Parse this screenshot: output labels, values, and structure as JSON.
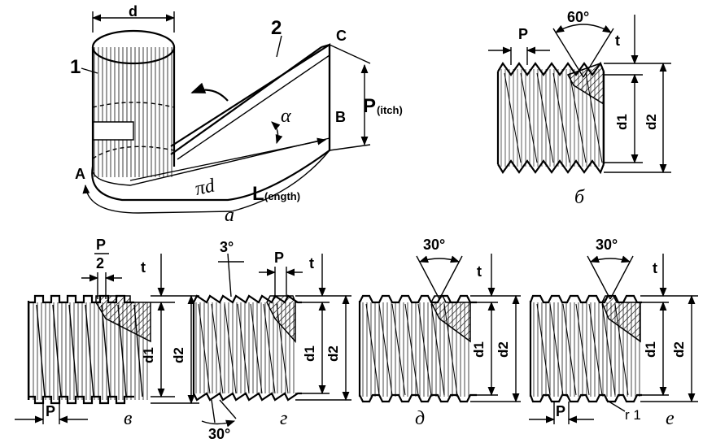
{
  "fig_a": {
    "label_d": "d",
    "label_1": "1",
    "label_2": "2",
    "label_A": "A",
    "label_B": "B",
    "label_C": "C",
    "label_alpha": "α",
    "label_pid": "πd",
    "pitch_main": "P",
    "pitch_sub": "(itch)",
    "length_main": "L",
    "length_sub": "(ength)",
    "caption": "а"
  },
  "fig_b": {
    "label_P": "P",
    "angle": "60°",
    "label_t": "t",
    "label_d1": "d1",
    "label_d2": "d2",
    "caption": "б"
  },
  "fig_v": {
    "label_P": "P",
    "label_2": "2",
    "label_t": "t",
    "label_d1": "d1",
    "label_d2": "d2",
    "label_P_bottom": "P",
    "caption": "в"
  },
  "fig_g": {
    "angle_top": "3°",
    "label_P": "P",
    "label_t": "t",
    "label_d1": "d1",
    "label_d2": "d2",
    "angle_bottom": "30°",
    "caption": "г"
  },
  "fig_d": {
    "angle": "30°",
    "label_t": "t",
    "label_d1": "d1",
    "label_d2": "d2",
    "caption": "д"
  },
  "fig_e": {
    "angle": "30°",
    "label_t": "t",
    "label_d1": "d1",
    "label_d2": "d2",
    "label_P": "P",
    "label_r1": "r 1",
    "caption": "е"
  }
}
